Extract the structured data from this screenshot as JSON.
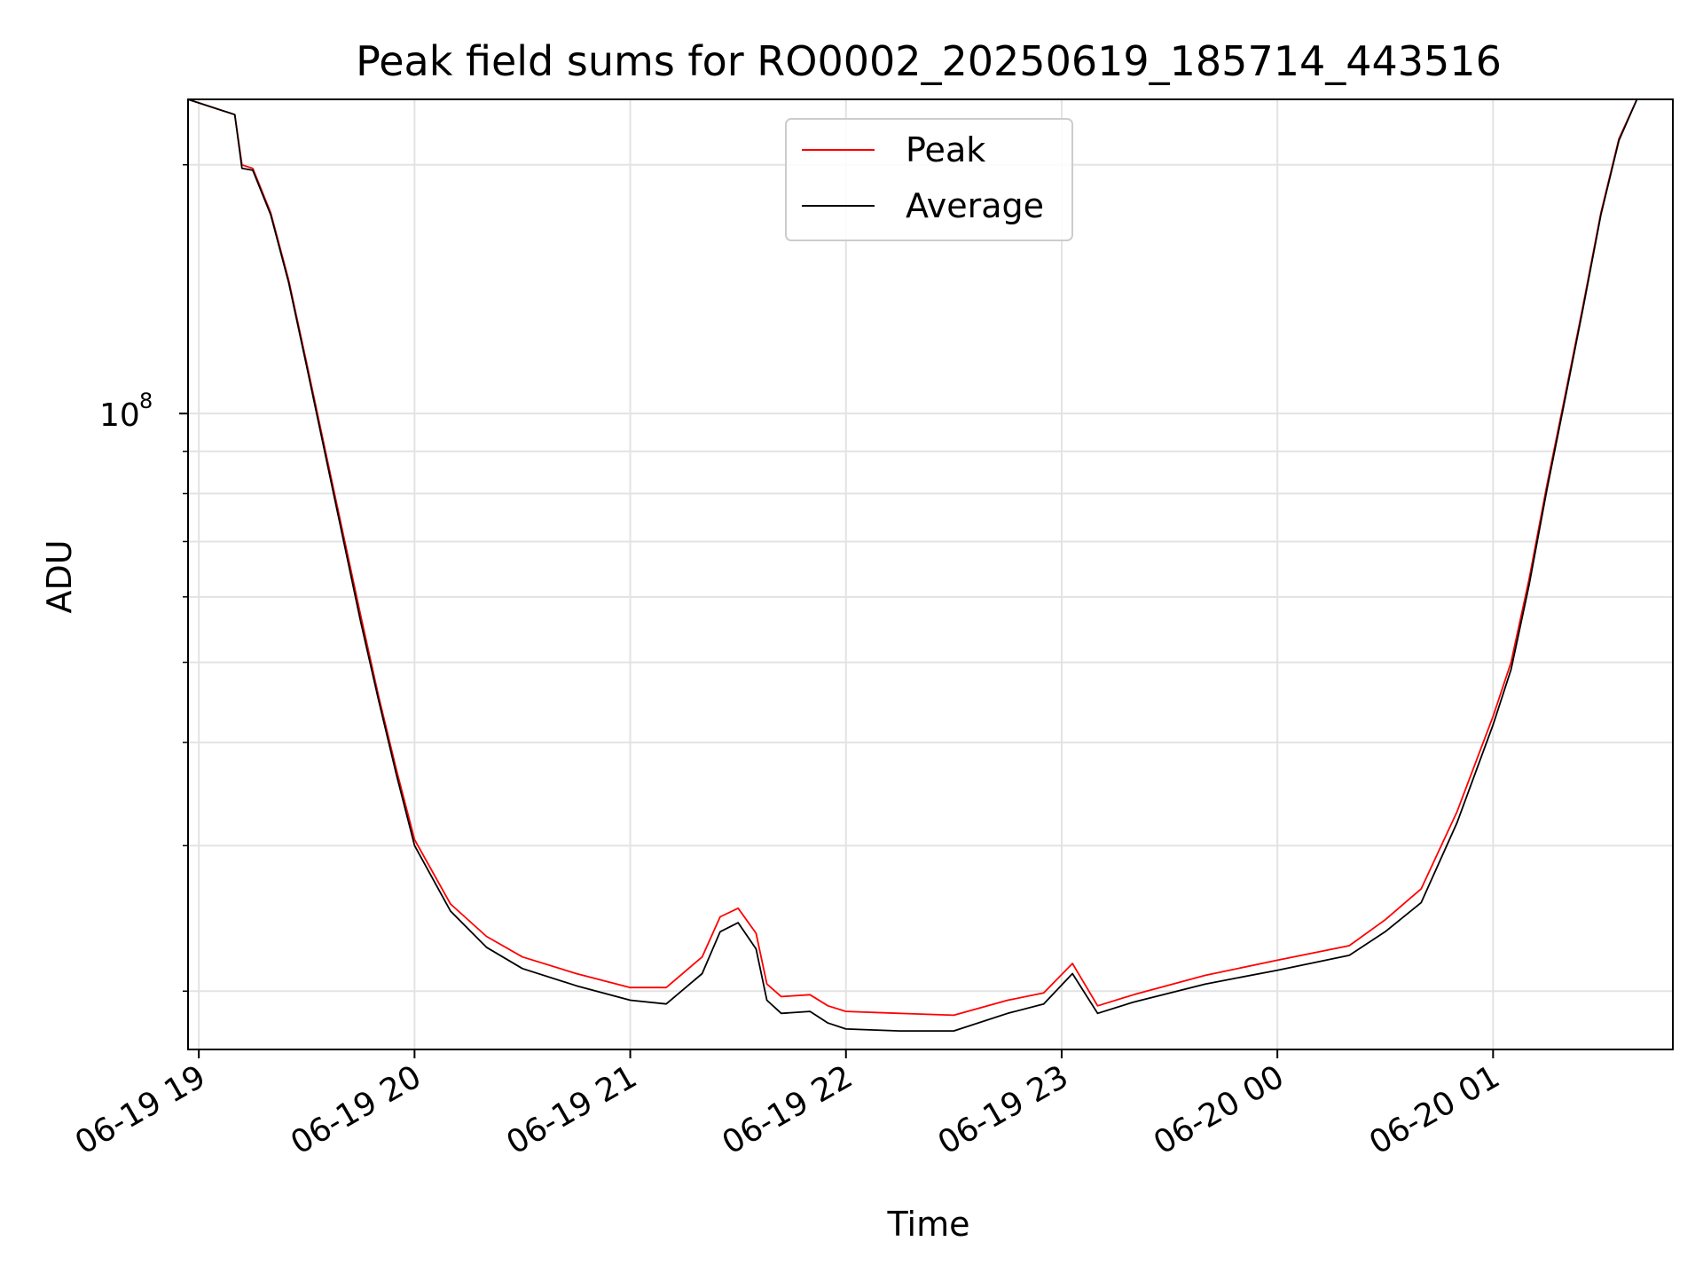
{
  "chart_data": {
    "type": "line",
    "title": "Peak field sums for RO0002_20250619_185714_443516",
    "xlabel": "Time",
    "ylabel": "ADU",
    "y_scale": "log",
    "grid": true,
    "legend_position": "top-center",
    "x_range": [
      "2025-06-19 18:57",
      "2025-06-20 01:50"
    ],
    "ylim": [
      17000000,
      240000000
    ],
    "x_ticks": [
      {
        "label": "06-19 19",
        "time": "2025-06-19 19:00"
      },
      {
        "label": "06-19 20",
        "time": "2025-06-19 20:00"
      },
      {
        "label": "06-19 21",
        "time": "2025-06-19 21:00"
      },
      {
        "label": "06-19 22",
        "time": "2025-06-19 22:00"
      },
      {
        "label": "06-19 23",
        "time": "2025-06-19 23:00"
      },
      {
        "label": "06-20 00",
        "time": "2025-06-20 00:00"
      },
      {
        "label": "06-20 01",
        "time": "2025-06-20 01:00"
      }
    ],
    "y_major_tick": {
      "value": 100000000,
      "base": "10",
      "exponent": "8"
    },
    "y_minor_ticks": [
      20000000,
      30000000,
      40000000,
      50000000,
      60000000,
      70000000,
      80000000,
      90000000,
      200000000
    ],
    "series": [
      {
        "name": "Peak",
        "color": "#ff0000",
        "x": [
          "2025-06-19 18:57",
          "2025-06-19 19:10",
          "2025-06-19 19:12",
          "2025-06-19 19:15",
          "2025-06-19 19:20",
          "2025-06-19 19:25",
          "2025-06-19 19:30",
          "2025-06-19 19:35",
          "2025-06-19 19:40",
          "2025-06-19 19:45",
          "2025-06-19 19:50",
          "2025-06-19 19:55",
          "2025-06-19 20:00",
          "2025-06-19 20:10",
          "2025-06-19 20:20",
          "2025-06-19 20:30",
          "2025-06-19 20:45",
          "2025-06-19 21:00",
          "2025-06-19 21:10",
          "2025-06-19 21:20",
          "2025-06-19 21:25",
          "2025-06-19 21:30",
          "2025-06-19 21:35",
          "2025-06-19 21:38",
          "2025-06-19 21:42",
          "2025-06-19 21:50",
          "2025-06-19 21:55",
          "2025-06-19 22:00",
          "2025-06-19 22:15",
          "2025-06-19 22:30",
          "2025-06-19 22:45",
          "2025-06-19 22:55",
          "2025-06-19 23:03",
          "2025-06-19 23:10",
          "2025-06-19 23:20",
          "2025-06-19 23:40",
          "2025-06-20 00:00",
          "2025-06-20 00:20",
          "2025-06-20 00:30",
          "2025-06-20 00:40",
          "2025-06-20 00:50",
          "2025-06-20 01:00",
          "2025-06-20 01:05",
          "2025-06-20 01:10",
          "2025-06-20 01:15",
          "2025-06-20 01:20",
          "2025-06-20 01:25",
          "2025-06-20 01:30",
          "2025-06-20 01:35",
          "2025-06-20 01:40",
          "2025-06-20 01:50"
        ],
        "values": [
          240000000,
          230000000,
          200000000,
          198000000,
          175000000,
          145000000,
          115000000,
          91000000,
          72000000,
          57000000,
          45500000,
          37000000,
          30500000,
          25500000,
          23300000,
          22000000,
          21000000,
          20200000,
          20200000,
          22000000,
          24600000,
          25200000,
          23500000,
          20400000,
          19700000,
          19800000,
          19200000,
          18900000,
          18800000,
          18700000,
          19500000,
          19900000,
          21600000,
          19200000,
          19800000,
          20900000,
          21800000,
          22700000,
          24400000,
          26600000,
          33000000,
          43000000,
          50000000,
          63000000,
          82000000,
          105000000,
          135000000,
          175000000,
          215000000,
          240000000,
          240000000
        ]
      },
      {
        "name": "Average",
        "color": "#000000",
        "x": [
          "2025-06-19 18:57",
          "2025-06-19 19:10",
          "2025-06-19 19:12",
          "2025-06-19 19:15",
          "2025-06-19 19:20",
          "2025-06-19 19:25",
          "2025-06-19 19:30",
          "2025-06-19 19:35",
          "2025-06-19 19:40",
          "2025-06-19 19:45",
          "2025-06-19 19:50",
          "2025-06-19 19:55",
          "2025-06-19 20:00",
          "2025-06-19 20:10",
          "2025-06-19 20:20",
          "2025-06-19 20:30",
          "2025-06-19 20:45",
          "2025-06-19 21:00",
          "2025-06-19 21:10",
          "2025-06-19 21:20",
          "2025-06-19 21:25",
          "2025-06-19 21:30",
          "2025-06-19 21:35",
          "2025-06-19 21:38",
          "2025-06-19 21:42",
          "2025-06-19 21:50",
          "2025-06-19 21:55",
          "2025-06-19 22:00",
          "2025-06-19 22:15",
          "2025-06-19 22:30",
          "2025-06-19 22:45",
          "2025-06-19 22:55",
          "2025-06-19 23:03",
          "2025-06-19 23:10",
          "2025-06-19 23:20",
          "2025-06-19 23:40",
          "2025-06-20 00:00",
          "2025-06-20 00:20",
          "2025-06-20 00:30",
          "2025-06-20 00:40",
          "2025-06-20 00:50",
          "2025-06-20 01:00",
          "2025-06-20 01:05",
          "2025-06-20 01:10",
          "2025-06-20 01:15",
          "2025-06-20 01:20",
          "2025-06-20 01:25",
          "2025-06-20 01:30",
          "2025-06-20 01:35",
          "2025-06-20 01:40",
          "2025-06-20 01:50"
        ],
        "values": [
          240000000,
          230000000,
          198000000,
          197000000,
          174000000,
          144000000,
          114000000,
          90000000,
          71000000,
          56000000,
          45000000,
          36500000,
          30000000,
          25000000,
          22600000,
          21300000,
          20300000,
          19500000,
          19300000,
          21000000,
          23600000,
          24200000,
          22500000,
          19500000,
          18800000,
          18900000,
          18300000,
          18000000,
          17900000,
          17900000,
          18800000,
          19300000,
          21000000,
          18800000,
          19400000,
          20400000,
          21200000,
          22100000,
          23600000,
          25600000,
          32000000,
          42000000,
          49000000,
          62000000,
          81000000,
          104000000,
          134000000,
          174000000,
          214000000,
          240000000,
          240000000
        ]
      }
    ]
  }
}
